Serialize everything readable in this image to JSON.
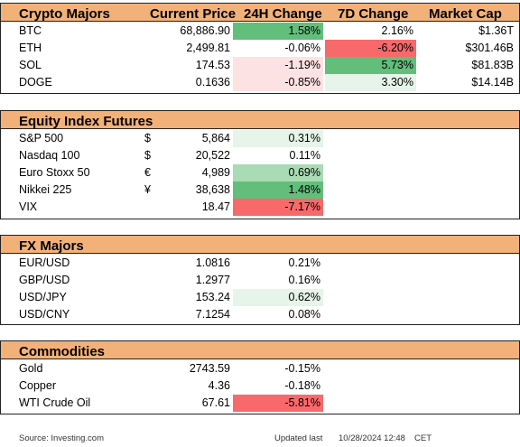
{
  "colors": {
    "header_bg": "#f3b17a",
    "pos_strong": "#63be7b",
    "pos_mid": "#a9dbb4",
    "pos_light": "#e6f4e9",
    "neg_strong": "#f8696b",
    "neg_light": "#fde2e3"
  },
  "crypto": {
    "headers": [
      "Crypto Majors",
      "Current Price",
      "24H Change",
      "7D Change",
      "Market Cap"
    ],
    "rows": [
      {
        "name": "BTC",
        "price": "68,886.90",
        "chg24": "1.58%",
        "chg7": "2.16%",
        "mcap": "$1.36T",
        "c24": "pos_strong",
        "c7": "none"
      },
      {
        "name": "ETH",
        "price": "2,499.81",
        "chg24": "-0.06%",
        "chg7": "-6.20%",
        "mcap": "$301.46B",
        "c24": "none",
        "c7": "neg_strong"
      },
      {
        "name": "SOL",
        "price": "174.53",
        "chg24": "-1.19%",
        "chg7": "5.73%",
        "mcap": "$81.83B",
        "c24": "neg_light",
        "c7": "pos_strong"
      },
      {
        "name": "DOGE",
        "price": "0.1636",
        "chg24": "-0.85%",
        "chg7": "3.30%",
        "mcap": "$14.14B",
        "c24": "neg_light",
        "c7": "pos_light"
      }
    ]
  },
  "equity": {
    "title": "Equity Index Futures",
    "rows": [
      {
        "name": "S&P 500",
        "cur": "$",
        "price": "5,864",
        "chg24": "0.31%",
        "c24": "pos_light"
      },
      {
        "name": "Nasdaq 100",
        "cur": "$",
        "price": "20,522",
        "chg24": "0.11%",
        "c24": "none"
      },
      {
        "name": "Euro Stoxx 50",
        "cur": "€",
        "price": "4,989",
        "chg24": "0.69%",
        "c24": "pos_mid"
      },
      {
        "name": "Nikkei 225",
        "cur": "¥",
        "price": "38,638",
        "chg24": "1.48%",
        "c24": "pos_strong"
      },
      {
        "name": "VIX",
        "cur": "",
        "price": "18.47",
        "chg24": "-7.17%",
        "c24": "neg_strong"
      }
    ]
  },
  "fx": {
    "title": "FX Majors",
    "rows": [
      {
        "name": "EUR/USD",
        "price": "1.0816",
        "chg24": "0.21%",
        "c24": "none"
      },
      {
        "name": "GBP/USD",
        "price": "1.2977",
        "chg24": "0.16%",
        "c24": "none"
      },
      {
        "name": "USD/JPY",
        "price": "153.24",
        "chg24": "0.62%",
        "c24": "pos_light"
      },
      {
        "name": "USD/CNY",
        "price": "7.1254",
        "chg24": "0.08%",
        "c24": "none"
      }
    ]
  },
  "commodities": {
    "title": "Commodities",
    "rows": [
      {
        "name": "Gold",
        "price": "2743.59",
        "chg24": "-0.15%",
        "c24": "none"
      },
      {
        "name": "Copper",
        "price": "4.36",
        "chg24": "-0.18%",
        "c24": "none"
      },
      {
        "name": "WTI Crude Oil",
        "price": "67.61",
        "chg24": "-5.81%",
        "c24": "neg_strong"
      }
    ]
  },
  "footer": {
    "source": "Source: Investing.com",
    "updated_label": "Updated last",
    "updated_value": "10/28/2024 12:48",
    "timezone": "CET"
  }
}
